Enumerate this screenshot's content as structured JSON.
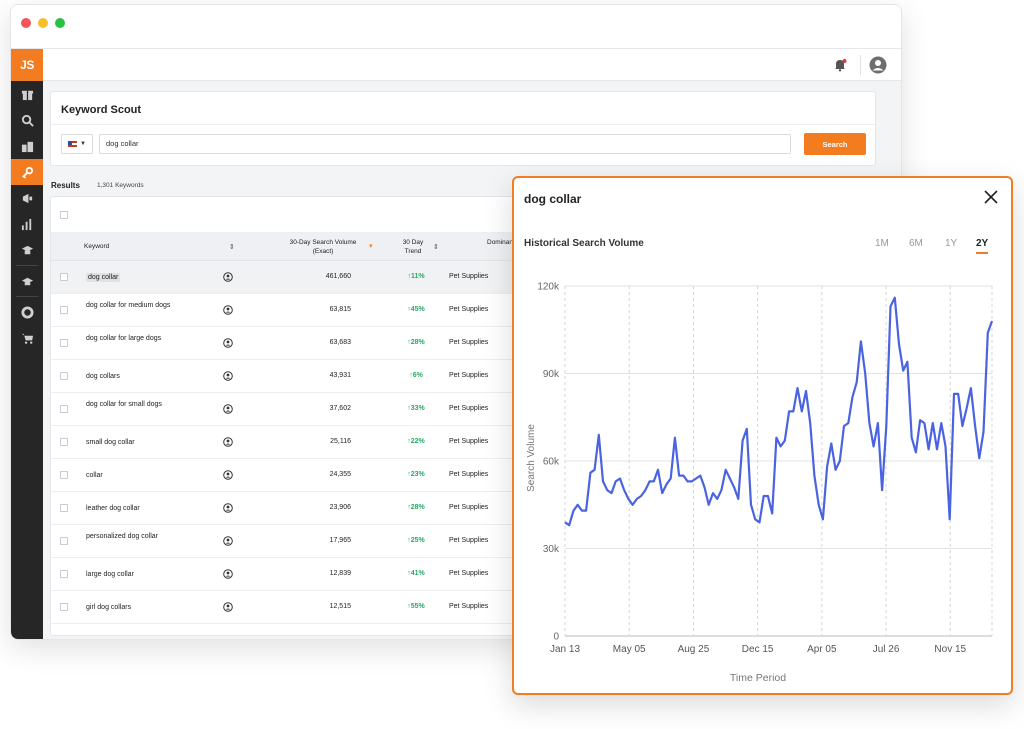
{
  "app": {
    "logo": "JS"
  },
  "keyword_scout": {
    "title": "Keyword Scout",
    "search_value": "dog collar",
    "search_button": "Search",
    "results_label": "Results",
    "results_count": "1,301 Keywords"
  },
  "table": {
    "headers": {
      "keyword": "Keyword",
      "volume": "30-Day Search Volume (Exact)",
      "trend": "30 Day Trend",
      "category": "Dominant Category"
    },
    "rows": [
      {
        "keyword": "dog collar",
        "volume": "461,660",
        "trend": "11%",
        "category": "Pet Supplies"
      },
      {
        "keyword": "dog collar for medium dogs",
        "volume": "63,815",
        "trend": "45%",
        "category": "Pet Supplies"
      },
      {
        "keyword": "dog collar for large dogs",
        "volume": "63,683",
        "trend": "28%",
        "category": "Pet Supplies"
      },
      {
        "keyword": "dog collars",
        "volume": "43,931",
        "trend": "6%",
        "category": "Pet Supplies"
      },
      {
        "keyword": "dog collar for small dogs",
        "volume": "37,602",
        "trend": "33%",
        "category": "Pet Supplies"
      },
      {
        "keyword": "small dog collar",
        "volume": "25,116",
        "trend": "22%",
        "category": "Pet Supplies"
      },
      {
        "keyword": "collar",
        "volume": "24,355",
        "trend": "23%",
        "category": "Pet Supplies"
      },
      {
        "keyword": "leather dog collar",
        "volume": "23,906",
        "trend": "28%",
        "category": "Pet Supplies"
      },
      {
        "keyword": "personalized dog collar",
        "volume": "17,965",
        "trend": "25%",
        "category": "Pet Supplies"
      },
      {
        "keyword": "large dog collar",
        "volume": "12,839",
        "trend": "41%",
        "category": "Pet Supplies"
      },
      {
        "keyword": "girl dog collars",
        "volume": "12,515",
        "trend": "55%",
        "category": "Pet Supplies"
      }
    ]
  },
  "modal": {
    "title": "dog collar",
    "subtitle": "Historical Search Volume",
    "ranges": [
      "1M",
      "6M",
      "1Y",
      "2Y"
    ],
    "active_range": "2Y"
  },
  "colors": {
    "accent": "#f47c20",
    "line": "#4a63e0",
    "trend_up": "#29a865"
  },
  "chart_data": {
    "type": "line",
    "xlabel": "Time Period",
    "ylabel": "Search Volume",
    "ylim": [
      0,
      120000
    ],
    "yticks": [
      0,
      30000,
      60000,
      90000,
      120000
    ],
    "ytick_labels": [
      "0",
      "30k",
      "60k",
      "90k",
      "120k"
    ],
    "xtick_labels": [
      "Jan 13",
      "May 05",
      "Aug 25",
      "Dec 15",
      "Apr 05",
      "Jul 26",
      "Nov 15"
    ],
    "grid": true,
    "series": [
      {
        "values": [
          39000,
          38000,
          43000,
          45000,
          43000,
          43000,
          56000,
          57000,
          69000,
          53000,
          50000,
          49000,
          53000,
          54000,
          50000,
          47000,
          45000,
          47000,
          48000,
          50000,
          53000,
          53000,
          57000,
          49000,
          52000,
          54000,
          68000,
          55000,
          55000,
          53000,
          53000,
          54000,
          55000,
          51000,
          45000,
          49000,
          47000,
          50000,
          57000,
          54000,
          51000,
          47000,
          67000,
          71000,
          45000,
          40000,
          39000,
          48000,
          48000,
          42000,
          68000,
          65000,
          67000,
          77000,
          77000,
          85000,
          77000,
          84000,
          73000,
          55000,
          45000,
          40000,
          58000,
          66000,
          57000,
          60000,
          72000,
          73000,
          82000,
          87000,
          101000,
          90000,
          73000,
          65000,
          73000,
          50000,
          72000,
          113000,
          116000,
          100000,
          91000,
          94000,
          68000,
          63000,
          74000,
          73000,
          64000,
          73000,
          64000,
          73000,
          65000,
          40000,
          83000,
          83000,
          72000,
          78000,
          85000,
          72000,
          61000,
          70000,
          104000,
          108000
        ]
      }
    ]
  }
}
